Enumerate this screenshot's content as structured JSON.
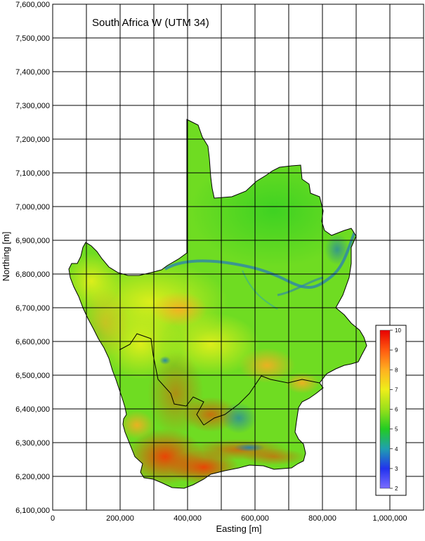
{
  "map": {
    "title": "South Africa W (UTM 34)",
    "x_axis": {
      "label": "Easting [m]",
      "min": 0,
      "max": 1100000,
      "gridline_step": 100000,
      "tick_labels": [
        {
          "value": 0,
          "text": "0"
        },
        {
          "value": 200000,
          "text": "200,000"
        },
        {
          "value": 400000,
          "text": "400,000"
        },
        {
          "value": 600000,
          "text": "600,000"
        },
        {
          "value": 800000,
          "text": "800,000"
        },
        {
          "value": 1000000,
          "text": "1,000,000"
        }
      ]
    },
    "y_axis": {
      "label": "Northing [m]",
      "min": 6100000,
      "max": 7600000,
      "gridline_step": 100000,
      "tick_labels": [
        {
          "value": 7600000,
          "text": "7,600,000"
        },
        {
          "value": 7500000,
          "text": "7,500,000"
        },
        {
          "value": 7400000,
          "text": "7,400,000"
        },
        {
          "value": 7300000,
          "text": "7,300,000"
        },
        {
          "value": 7200000,
          "text": "7,200,000"
        },
        {
          "value": 7100000,
          "text": "7,100,000"
        },
        {
          "value": 7000000,
          "text": "7,000,000"
        },
        {
          "value": 6900000,
          "text": "6,900,000"
        },
        {
          "value": 6800000,
          "text": "6,800,000"
        },
        {
          "value": 6700000,
          "text": "6,700,000"
        },
        {
          "value": 6600000,
          "text": "6,600,000"
        },
        {
          "value": 6500000,
          "text": "6,500,000"
        },
        {
          "value": 6400000,
          "text": "6,400,000"
        },
        {
          "value": 6300000,
          "text": "6,300,000"
        },
        {
          "value": 6200000,
          "text": "6,200,000"
        },
        {
          "value": 6100000,
          "text": "6,100,000"
        }
      ]
    },
    "grid": true,
    "colorbar": {
      "min": 2,
      "max": 10,
      "tick_labels": [
        "10",
        "9",
        "8",
        "7",
        "6",
        "5",
        "4",
        "3",
        "2"
      ],
      "colors": [
        "#7a6cff",
        "#2233ee",
        "#1f9fb0",
        "#22cc22",
        "#99e01a",
        "#eeee1a",
        "#ffb020",
        "#ff5a10",
        "#e80000"
      ]
    },
    "colors": {
      "background": "#ffffff",
      "grid_line": "#000000",
      "boundary": "#000000"
    }
  }
}
